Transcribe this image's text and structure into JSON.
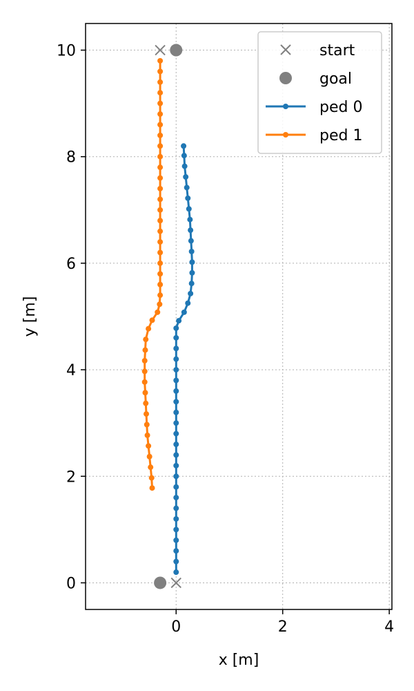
{
  "chart_data": {
    "type": "line",
    "xlabel": "x [m]",
    "ylabel": "y [m]",
    "xlim": [
      -1.7,
      4.05
    ],
    "ylim": [
      -0.5,
      10.5
    ],
    "x_ticks": [
      0,
      2,
      4
    ],
    "y_ticks": [
      0,
      2,
      4,
      6,
      8,
      10
    ],
    "x_tick_labels": [
      "0",
      "2",
      "4"
    ],
    "y_tick_labels": [
      "0",
      "2",
      "4",
      "6",
      "8",
      "10"
    ],
    "grid": true,
    "legend_position": "top-right",
    "legend": [
      {
        "label": "start",
        "marker": "x",
        "color": "#808080"
      },
      {
        "label": "goal",
        "marker": "circle",
        "color": "#808080"
      },
      {
        "label": "ped 0",
        "marker": "line-dot",
        "color": "#1f77b4"
      },
      {
        "label": "ped 1",
        "marker": "line-dot",
        "color": "#ff7f0e"
      }
    ],
    "start_points": [
      {
        "x": 0.0,
        "y": 0.0
      },
      {
        "x": -0.3,
        "y": 10.0
      }
    ],
    "goal_points": [
      {
        "x": -0.3,
        "y": 0.0
      },
      {
        "x": 0.0,
        "y": 10.0
      }
    ],
    "series": [
      {
        "name": "ped 0",
        "color": "#1f77b4",
        "points": [
          [
            0.0,
            0.2
          ],
          [
            0.0,
            0.4
          ],
          [
            0.0,
            0.6
          ],
          [
            0.0,
            0.8
          ],
          [
            0.0,
            1.0
          ],
          [
            0.0,
            1.2
          ],
          [
            0.0,
            1.4
          ],
          [
            0.0,
            1.6
          ],
          [
            0.0,
            1.8
          ],
          [
            0.0,
            2.0
          ],
          [
            0.0,
            2.2
          ],
          [
            0.0,
            2.4
          ],
          [
            0.0,
            2.6
          ],
          [
            0.0,
            2.8
          ],
          [
            0.0,
            3.0
          ],
          [
            0.0,
            3.2
          ],
          [
            0.0,
            3.4
          ],
          [
            0.0,
            3.6
          ],
          [
            0.0,
            3.8
          ],
          [
            0.0,
            4.0
          ],
          [
            0.0,
            4.2
          ],
          [
            0.0,
            4.4
          ],
          [
            0.0,
            4.6
          ],
          [
            0.0,
            4.78
          ],
          [
            0.05,
            4.92
          ],
          [
            0.15,
            5.08
          ],
          [
            0.22,
            5.25
          ],
          [
            0.27,
            5.43
          ],
          [
            0.29,
            5.62
          ],
          [
            0.3,
            5.82
          ],
          [
            0.3,
            6.02
          ],
          [
            0.29,
            6.22
          ],
          [
            0.28,
            6.42
          ],
          [
            0.27,
            6.62
          ],
          [
            0.26,
            6.82
          ],
          [
            0.24,
            7.02
          ],
          [
            0.22,
            7.22
          ],
          [
            0.2,
            7.42
          ],
          [
            0.18,
            7.62
          ],
          [
            0.16,
            7.82
          ],
          [
            0.15,
            8.02
          ],
          [
            0.14,
            8.2
          ]
        ]
      },
      {
        "name": "ped 1",
        "color": "#ff7f0e",
        "points": [
          [
            -0.3,
            9.8
          ],
          [
            -0.3,
            9.6
          ],
          [
            -0.3,
            9.4
          ],
          [
            -0.3,
            9.2
          ],
          [
            -0.3,
            9.0
          ],
          [
            -0.3,
            8.8
          ],
          [
            -0.3,
            8.6
          ],
          [
            -0.3,
            8.4
          ],
          [
            -0.3,
            8.2
          ],
          [
            -0.3,
            8.0
          ],
          [
            -0.3,
            7.8
          ],
          [
            -0.3,
            7.6
          ],
          [
            -0.3,
            7.4
          ],
          [
            -0.3,
            7.2
          ],
          [
            -0.3,
            7.0
          ],
          [
            -0.3,
            6.8
          ],
          [
            -0.3,
            6.6
          ],
          [
            -0.3,
            6.4
          ],
          [
            -0.3,
            6.2
          ],
          [
            -0.3,
            6.0
          ],
          [
            -0.3,
            5.8
          ],
          [
            -0.3,
            5.6
          ],
          [
            -0.3,
            5.4
          ],
          [
            -0.31,
            5.23
          ],
          [
            -0.35,
            5.08
          ],
          [
            -0.45,
            4.93
          ],
          [
            -0.52,
            4.77
          ],
          [
            -0.57,
            4.57
          ],
          [
            -0.58,
            4.37
          ],
          [
            -0.59,
            4.17
          ],
          [
            -0.59,
            3.97
          ],
          [
            -0.59,
            3.77
          ],
          [
            -0.58,
            3.57
          ],
          [
            -0.57,
            3.37
          ],
          [
            -0.56,
            3.17
          ],
          [
            -0.55,
            2.97
          ],
          [
            -0.54,
            2.77
          ],
          [
            -0.52,
            2.57
          ],
          [
            -0.5,
            2.37
          ],
          [
            -0.48,
            2.17
          ],
          [
            -0.46,
            1.97
          ],
          [
            -0.45,
            1.78
          ]
        ]
      }
    ]
  }
}
